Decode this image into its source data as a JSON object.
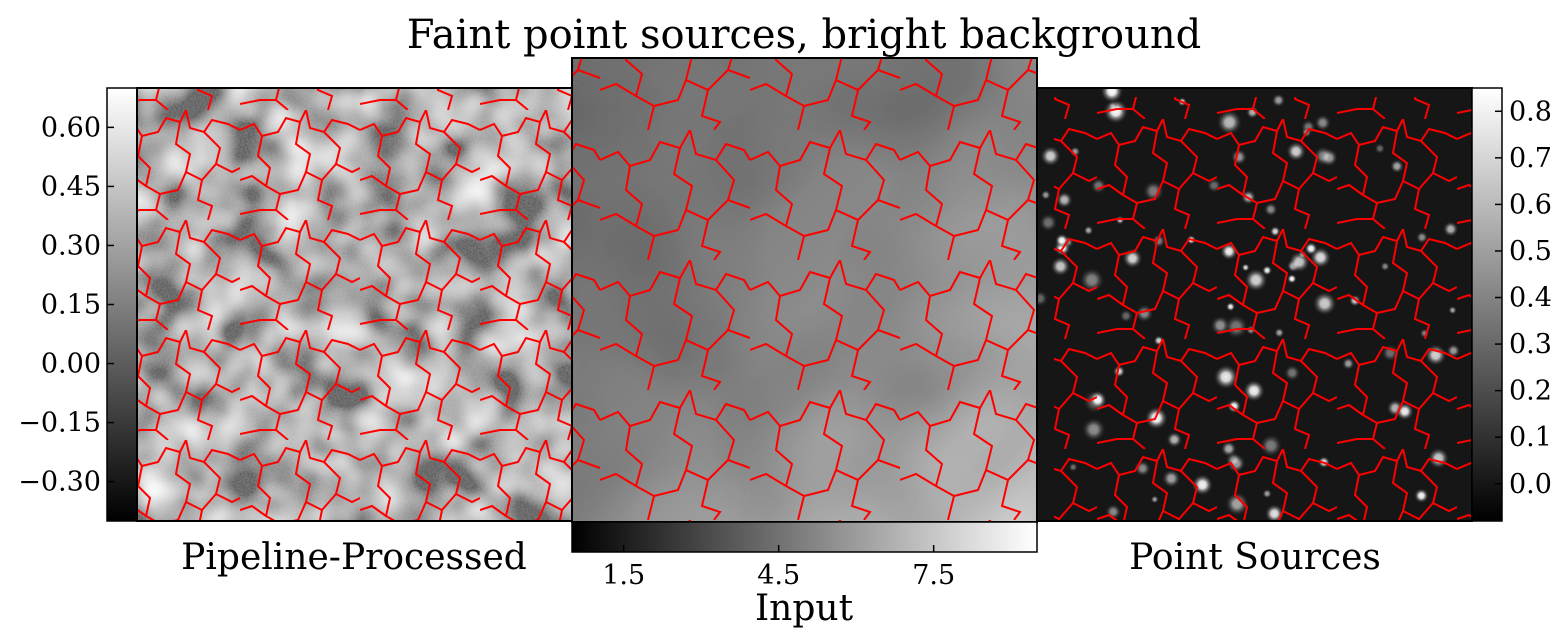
{
  "chart_data": {
    "type": "heatmap",
    "title": "Faint point sources, bright background",
    "colormap": "gray",
    "contour_color": "#ff0000",
    "panels": [
      {
        "label": "Pipeline-Processed",
        "colorbar": {
          "side": "left",
          "range": [
            -0.4,
            0.7
          ],
          "ticks": [
            -0.3,
            -0.15,
            0.0,
            0.15,
            0.3,
            0.45,
            0.6
          ],
          "tick_labels": [
            "−0.30",
            "−0.15",
            "0.00",
            "0.15",
            "0.30",
            "0.45",
            "0.60"
          ]
        }
      },
      {
        "label": "Input",
        "colorbar": {
          "side": "bottom",
          "range": [
            0.5,
            9.5
          ],
          "ticks": [
            1.5,
            4.5,
            7.5
          ],
          "tick_labels": [
            "1.5",
            "4.5",
            "7.5"
          ]
        }
      },
      {
        "label": "Point Sources",
        "colorbar": {
          "side": "right",
          "range": [
            -0.08,
            0.85
          ],
          "ticks": [
            0.0,
            0.1,
            0.2,
            0.3,
            0.4,
            0.5,
            0.6,
            0.7,
            0.8
          ],
          "tick_labels": [
            "0.0",
            "0.1",
            "0.2",
            "0.3",
            "0.4",
            "0.5",
            "0.6",
            "0.7",
            "0.8"
          ]
        }
      }
    ]
  }
}
